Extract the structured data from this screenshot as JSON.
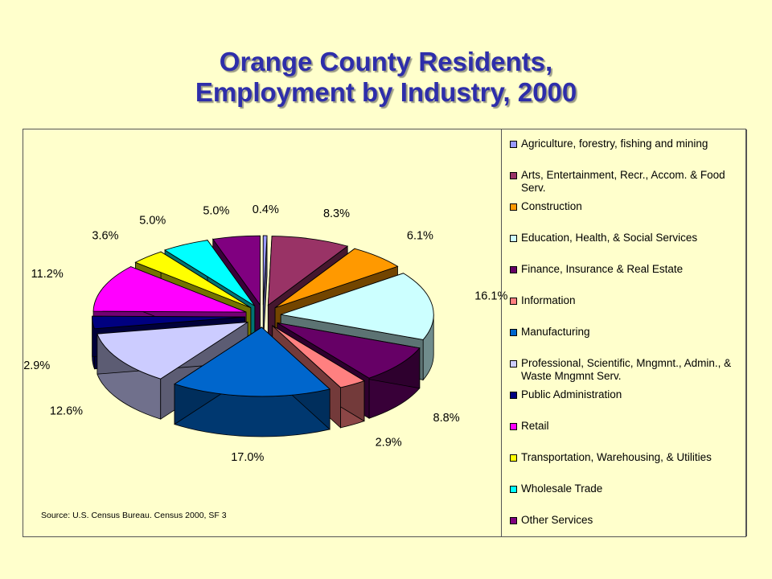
{
  "title": {
    "line1": "Orange County Residents,",
    "line2": "Employment by Industry, 2000"
  },
  "source_note": "Source: U.S. Census Bureau. Census 2000, SF 3",
  "chart_data": {
    "type": "pie",
    "title": "Orange County Residents, Employment by Industry, 2000",
    "legend_position": "right",
    "unit": "%",
    "slices": [
      {
        "label": "Agriculture, forestry, fishing and mining",
        "value": 0.4,
        "value_label": "0.4%",
        "color": "#9999FF"
      },
      {
        "label": "Arts, Entertainment, Recr., Accom. & Food Serv.",
        "value": 8.3,
        "value_label": "8.3%",
        "color": "#993366"
      },
      {
        "label": "Construction",
        "value": 6.1,
        "value_label": "6.1%",
        "color": "#FF9900"
      },
      {
        "label": "Education, Health, & Social Services",
        "value": 16.1,
        "value_label": "16.1%",
        "color": "#CCFFFF"
      },
      {
        "label": "Finance, Insurance & Real Estate",
        "value": 8.8,
        "value_label": "8.8%",
        "color": "#660066"
      },
      {
        "label": "Information",
        "value": 2.9,
        "value_label": "2.9%",
        "color": "#FF8080"
      },
      {
        "label": "Manufacturing",
        "value": 17.0,
        "value_label": "17.0%",
        "color": "#0066CC"
      },
      {
        "label": "Professional, Scientific, Mngmnt., Admin., & Waste Mngmnt Serv.",
        "value": 12.6,
        "value_label": "12.6%",
        "color": "#CCCCFF"
      },
      {
        "label": "Public Administration",
        "value": 2.9,
        "value_label": "2.9%",
        "color": "#000080"
      },
      {
        "label": "Retail",
        "value": 11.2,
        "value_label": "11.2%",
        "color": "#FF00FF"
      },
      {
        "label": "Transportation, Warehousing, & Utilities",
        "value": 3.6,
        "value_label": "3.6%",
        "color": "#FFFF00"
      },
      {
        "label": "Wholesale Trade",
        "value": 5.0,
        "value_label": "5.0%",
        "color": "#00FFFF"
      },
      {
        "label": "Other Services",
        "value": 5.0,
        "value_label": "5.0%",
        "color": "#800080"
      }
    ]
  }
}
